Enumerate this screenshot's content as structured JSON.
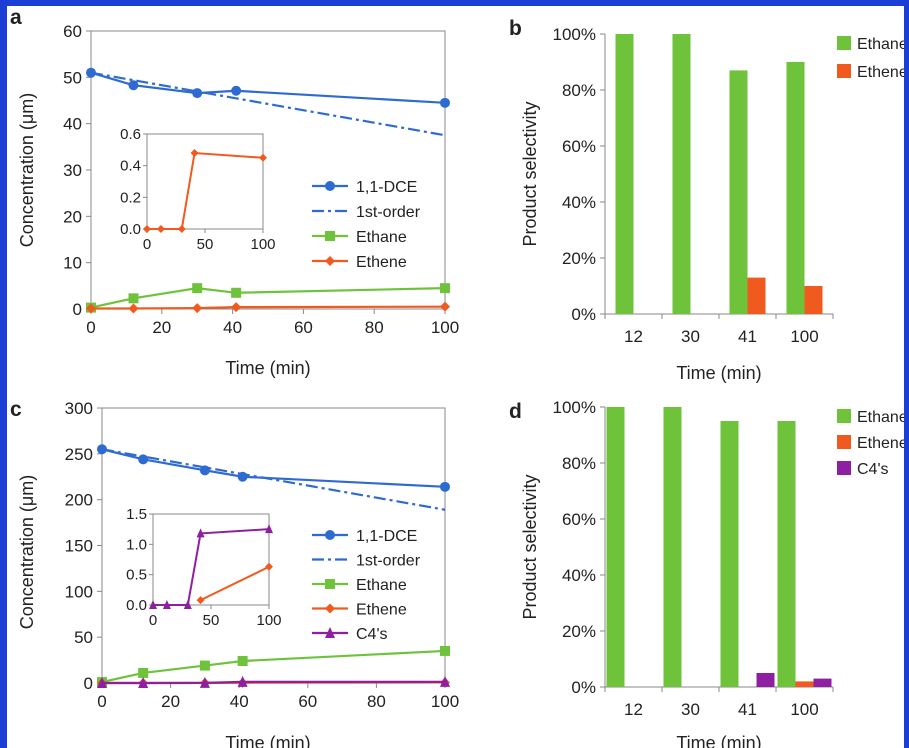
{
  "colors": {
    "dce": "#2e6bd1",
    "first_order": "#2e6bd1",
    "ethane": "#6ec33b",
    "ethene": "#f05a1f",
    "c4": "#8e1fa0",
    "frame": "#1b3fd6"
  },
  "chart_data": [
    {
      "panel": "a",
      "type": "line",
      "xlabel": "Time (min)",
      "ylabel": "Concentration (μm)",
      "xlim": [
        0,
        100
      ],
      "ylim": [
        0,
        60
      ],
      "xticks": [
        "0",
        "20",
        "40",
        "60",
        "80",
        "100"
      ],
      "yticks": [
        "0",
        "10",
        "20",
        "30",
        "40",
        "50",
        "60"
      ],
      "legend_position": "right",
      "series": [
        {
          "name": "1,1-DCE",
          "style": "line-circle",
          "x": [
            0,
            12,
            30,
            41,
            100
          ],
          "y": [
            51,
            48.3,
            46.6,
            47.1,
            44.5
          ]
        },
        {
          "name": "1st-order",
          "style": "dashdot",
          "x": [
            0,
            100
          ],
          "y": [
            51,
            37.5
          ]
        },
        {
          "name": "Ethane",
          "style": "line-square",
          "x": [
            0,
            12,
            30,
            41,
            100
          ],
          "y": [
            0.3,
            2.3,
            4.5,
            3.5,
            4.5
          ]
        },
        {
          "name": "Ethene",
          "style": "line-diamond",
          "x": [
            0,
            12,
            30,
            41,
            100
          ],
          "y": [
            0.1,
            0.1,
            0.2,
            0.4,
            0.5
          ]
        }
      ],
      "inset": {
        "xlim": [
          0,
          100
        ],
        "ylim": [
          0,
          0.6
        ],
        "xticks": [
          "0",
          "50",
          "100"
        ],
        "yticks": [
          "0.0",
          "0.2",
          "0.4",
          "0.6"
        ],
        "series": [
          {
            "name": "Ethene",
            "style": "line-diamond",
            "x": [
              0,
              12,
              30,
              41,
              100
            ],
            "y": [
              0,
              0,
              0,
              0.48,
              0.45
            ]
          }
        ]
      }
    },
    {
      "panel": "b",
      "type": "bar",
      "xlabel": "Time (min)",
      "ylabel": "Product selectivity",
      "categories": [
        "12",
        "30",
        "41",
        "100"
      ],
      "ylim": [
        0,
        100
      ],
      "yticks": [
        "0%",
        "20%",
        "40%",
        "60%",
        "80%",
        "100%"
      ],
      "legend_position": "top-right",
      "series": [
        {
          "name": "Ethane",
          "values": [
            100,
            100,
            87,
            90
          ]
        },
        {
          "name": "Ethene",
          "values": [
            0,
            0,
            13,
            10
          ]
        }
      ]
    },
    {
      "panel": "c",
      "type": "line",
      "xlabel": "Time (min)",
      "ylabel": "Concentration (μm)",
      "xlim": [
        0,
        100
      ],
      "ylim": [
        0,
        300
      ],
      "xticks": [
        "0",
        "20",
        "40",
        "60",
        "80",
        "100"
      ],
      "yticks": [
        "0",
        "50",
        "100",
        "150",
        "200",
        "250",
        "300"
      ],
      "legend_position": "right",
      "series": [
        {
          "name": "1,1-DCE",
          "style": "line-circle",
          "x": [
            0,
            12,
            30,
            41,
            100
          ],
          "y": [
            255,
            244,
            232,
            225,
            214
          ]
        },
        {
          "name": "1st-order",
          "style": "dashdot",
          "x": [
            0,
            100
          ],
          "y": [
            255,
            189
          ]
        },
        {
          "name": "Ethane",
          "style": "line-square",
          "x": [
            0,
            12,
            30,
            41,
            100
          ],
          "y": [
            1,
            11,
            19,
            24,
            35
          ]
        },
        {
          "name": "Ethene",
          "style": "line-diamond",
          "x": [
            0,
            12,
            30,
            41,
            100
          ],
          "y": [
            0,
            0,
            0.1,
            0.3,
            0.6
          ]
        },
        {
          "name": "C4's",
          "style": "line-triangle",
          "x": [
            0,
            12,
            30,
            41,
            100
          ],
          "y": [
            0,
            0,
            0.1,
            1.2,
            1.2
          ]
        }
      ],
      "inset": {
        "xlim": [
          0,
          100
        ],
        "ylim": [
          0,
          1.5
        ],
        "xticks": [
          "0",
          "50",
          "100"
        ],
        "yticks": [
          "0.0",
          "0.5",
          "1.0",
          "1.5"
        ],
        "series": [
          {
            "name": "C4's",
            "style": "line-triangle",
            "x": [
              0,
              12,
              30,
              41,
              100
            ],
            "y": [
              0,
              0,
              0,
              1.18,
              1.25
            ]
          },
          {
            "name": "Ethene",
            "style": "line-diamond",
            "x": [
              41,
              100
            ],
            "y": [
              0.08,
              0.63
            ]
          }
        ]
      }
    },
    {
      "panel": "d",
      "type": "bar",
      "xlabel": "Time (min)",
      "ylabel": "Product selectivity",
      "categories": [
        "12",
        "30",
        "41",
        "100"
      ],
      "ylim": [
        0,
        100
      ],
      "yticks": [
        "0%",
        "20%",
        "40%",
        "60%",
        "80%",
        "100%"
      ],
      "legend_position": "top-right",
      "series": [
        {
          "name": "Ethane",
          "values": [
            100,
            100,
            95,
            95
          ]
        },
        {
          "name": "Ethene",
          "values": [
            0,
            0,
            0,
            2
          ]
        },
        {
          "name": "C4's",
          "values": [
            0,
            0,
            5,
            3
          ]
        }
      ]
    }
  ]
}
